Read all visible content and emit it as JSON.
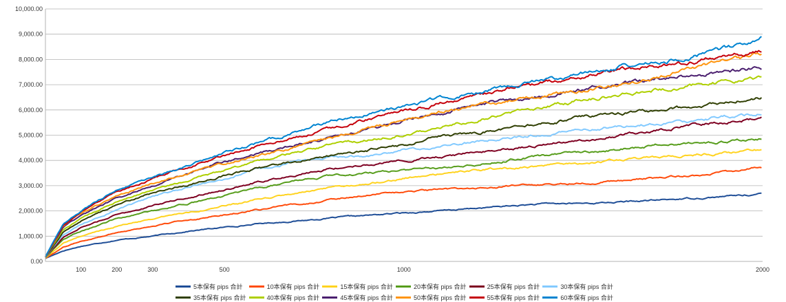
{
  "chart_data": {
    "type": "line",
    "title": "",
    "xlabel": "",
    "ylabel": "",
    "xlim": [
      1,
      2000
    ],
    "ylim": [
      0,
      10000
    ],
    "grid": "horizontal",
    "legend_position": "bottom",
    "y_ticks": [
      0,
      1000,
      2000,
      3000,
      4000,
      5000,
      6000,
      7000,
      8000,
      9000,
      10000
    ],
    "y_tick_labels": [
      "0.00",
      "1,000.00",
      "2,000.00",
      "3,000.00",
      "4,000.00",
      "5,000.00",
      "6,000.00",
      "7,000.00",
      "8,000.00",
      "9,000.00",
      "10,000.00"
    ],
    "x_ticks": [
      100,
      200,
      300,
      500,
      1000,
      2000
    ],
    "x_tick_labels": [
      "100",
      "200",
      "300",
      "500",
      "1000",
      "2000"
    ],
    "x_sample": [
      1,
      50,
      100,
      200,
      300,
      400,
      500,
      600,
      700,
      800,
      900,
      1000,
      1100,
      1200,
      1300,
      1400,
      1500,
      1600,
      1700,
      1800,
      1900,
      2000
    ],
    "series": [
      {
        "name": "5本保有 pips 合計",
        "color": "#1f4e97",
        "values": [
          120,
          420,
          600,
          850,
          1000,
          1200,
          1350,
          1500,
          1600,
          1720,
          1820,
          1920,
          2000,
          2100,
          2200,
          2280,
          2300,
          2350,
          2420,
          2500,
          2580,
          2680
        ]
      },
      {
        "name": "10本保有 pips 合計",
        "color": "#ff4c0c",
        "values": [
          130,
          560,
          800,
          1150,
          1400,
          1650,
          1850,
          2050,
          2250,
          2450,
          2650,
          2750,
          2830,
          2900,
          2980,
          3050,
          3120,
          3200,
          3300,
          3400,
          3550,
          3720
        ]
      },
      {
        "name": "15本保有 pips 合計",
        "color": "#ffd320",
        "values": [
          140,
          720,
          1000,
          1400,
          1700,
          1950,
          2200,
          2450,
          2700,
          2900,
          3100,
          3300,
          3450,
          3600,
          3700,
          3780,
          3900,
          4000,
          4100,
          4200,
          4300,
          4420
        ]
      },
      {
        "name": "20本保有 pips 合計",
        "color": "#579d1c",
        "values": [
          150,
          860,
          1200,
          1700,
          2000,
          2300,
          2600,
          2900,
          3200,
          3380,
          3500,
          3620,
          3720,
          3850,
          4050,
          4200,
          4300,
          4450,
          4620,
          4700,
          4750,
          4850
        ]
      },
      {
        "name": "25本保有 pips 合計",
        "color": "#7e0021",
        "values": [
          155,
          950,
          1350,
          1850,
          2200,
          2550,
          2850,
          3150,
          3450,
          3700,
          3850,
          4000,
          4150,
          4300,
          4450,
          4650,
          4800,
          5000,
          5200,
          5400,
          5500,
          5720
        ]
      },
      {
        "name": "30本保有 pips 合計",
        "color": "#83caff",
        "values": [
          160,
          1050,
          1450,
          2050,
          2550,
          2950,
          3300,
          3650,
          3950,
          4100,
          4200,
          4400,
          4550,
          4750,
          4900,
          5050,
          5200,
          5350,
          5450,
          5600,
          5750,
          5850
        ]
      },
      {
        "name": "35本保有 pips 合計",
        "color": "#314004",
        "values": [
          165,
          1150,
          1600,
          2250,
          2700,
          3050,
          3400,
          3700,
          3950,
          4200,
          4400,
          4600,
          4950,
          5100,
          5300,
          5500,
          5700,
          5850,
          6000,
          6100,
          6300,
          6500
        ]
      },
      {
        "name": "40本保有 pips 合計",
        "color": "#aecf00",
        "values": [
          170,
          1250,
          1700,
          2350,
          2850,
          3200,
          3600,
          3950,
          4300,
          4600,
          4800,
          5050,
          5300,
          5600,
          5900,
          6150,
          6400,
          6600,
          6800,
          6950,
          7100,
          7300
        ]
      },
      {
        "name": "45本保有 pips 合計",
        "color": "#4b1f6f",
        "values": [
          175,
          1350,
          1850,
          2500,
          3000,
          3500,
          3950,
          4300,
          4650,
          4950,
          5250,
          5600,
          5850,
          6150,
          6400,
          6600,
          6800,
          7000,
          7200,
          7350,
          7500,
          7680
        ]
      },
      {
        "name": "50本保有 pips 合計",
        "color": "#ff950e",
        "values": [
          180,
          1400,
          1900,
          2600,
          3100,
          3500,
          3850,
          4200,
          4550,
          4900,
          5250,
          5600,
          5900,
          6200,
          6400,
          6600,
          6800,
          7000,
          7300,
          7600,
          7900,
          8230
        ]
      },
      {
        "name": "55本保有 pips 合計",
        "color": "#c5000b",
        "values": [
          185,
          1420,
          1950,
          2750,
          3250,
          3750,
          4200,
          4600,
          4900,
          5300,
          5650,
          5950,
          6250,
          6550,
          6850,
          7100,
          7350,
          7600,
          7750,
          7900,
          8100,
          8380
        ]
      },
      {
        "name": "60本保有 pips 合計",
        "color": "#0084d1",
        "values": [
          190,
          1450,
          2000,
          2850,
          3300,
          3800,
          4300,
          4700,
          5150,
          5600,
          5850,
          6150,
          6450,
          6700,
          6950,
          7200,
          7450,
          7700,
          7900,
          8100,
          8400,
          8850
        ]
      }
    ]
  }
}
